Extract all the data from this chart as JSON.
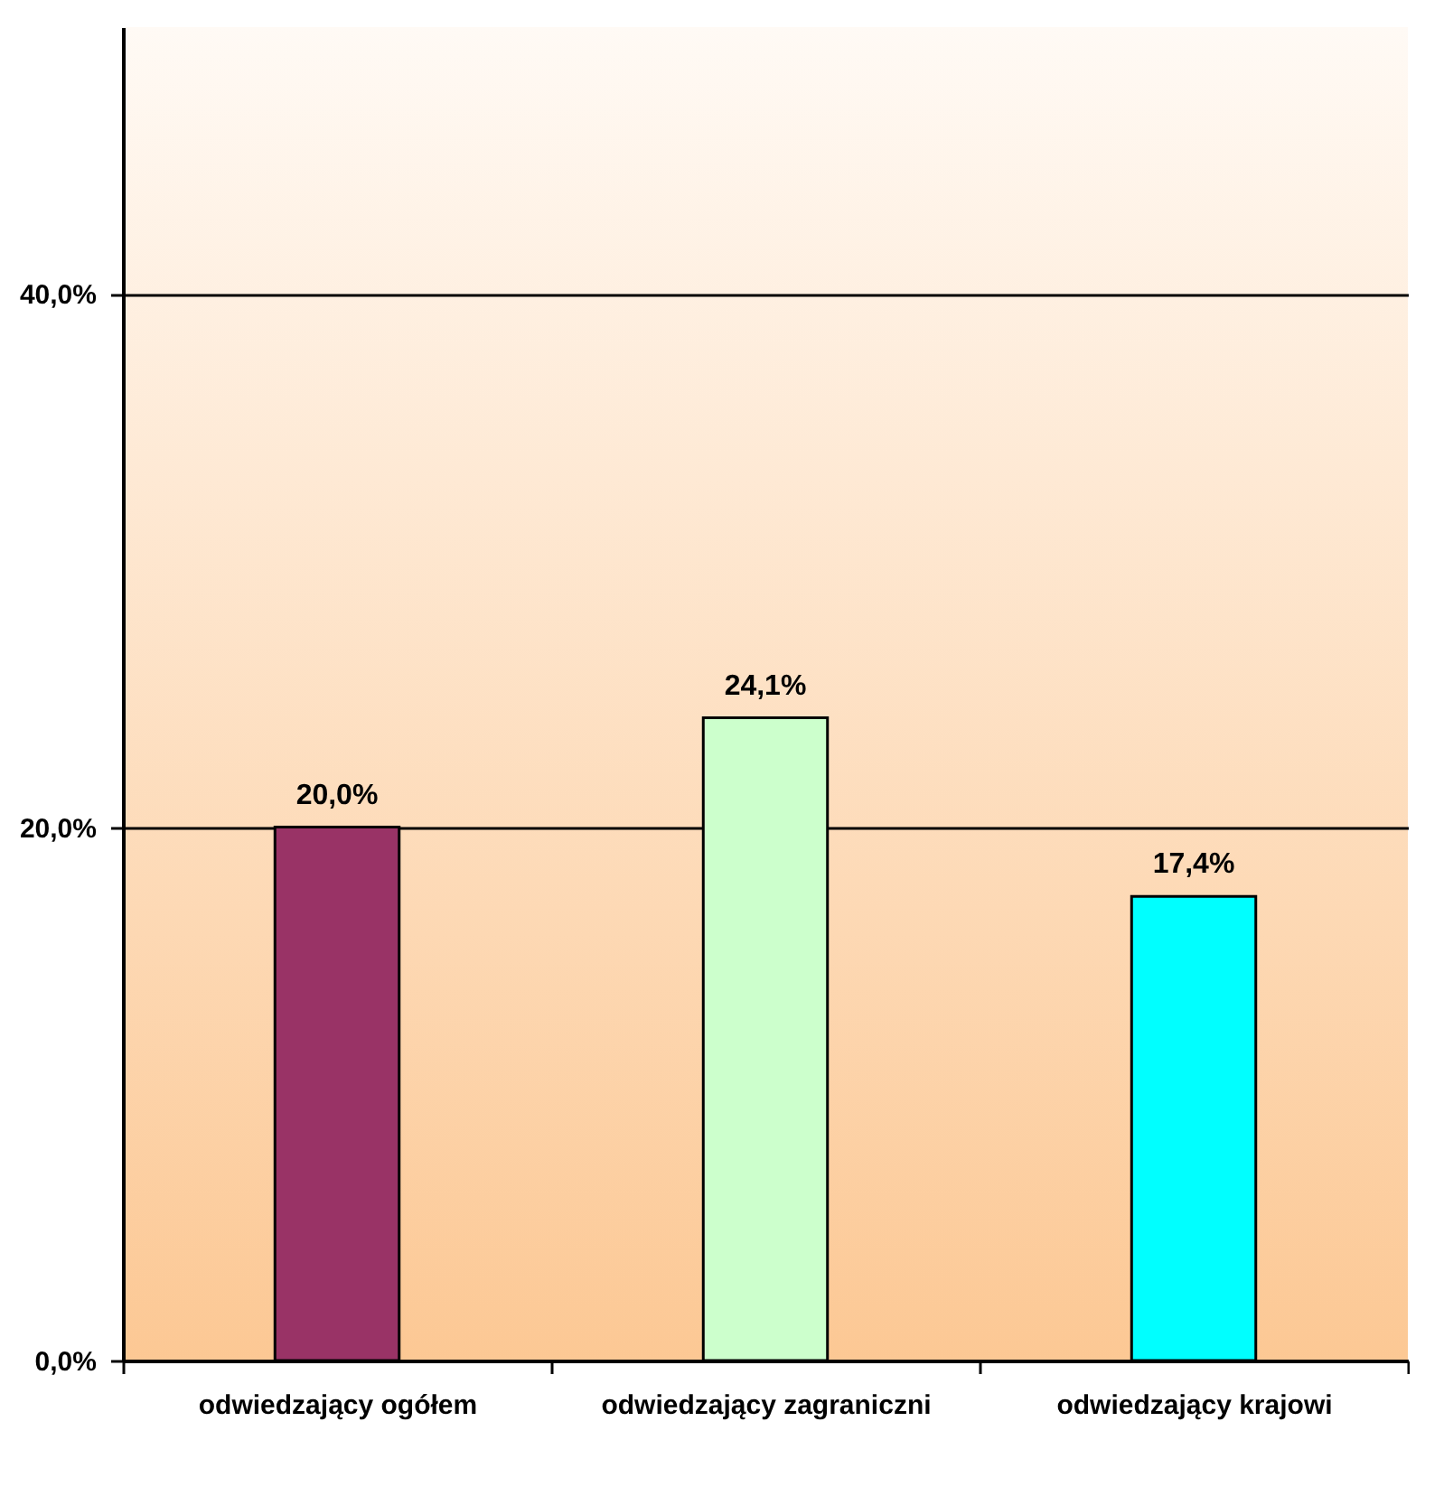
{
  "chart_data": {
    "type": "bar",
    "categories": [
      "odwiedzający ogółem",
      "odwiedzający zagraniczni",
      "odwiedzający krajowi"
    ],
    "values": [
      20.0,
      24.1,
      17.4
    ],
    "colors": [
      "#993366",
      "#ccffcc",
      "#00ffff"
    ],
    "value_labels": [
      "20,0%",
      "24,1%",
      "17,4%"
    ],
    "ylim": [
      0,
      50
    ],
    "yticks": [
      {
        "value": 0,
        "label": "0,0%"
      },
      {
        "value": 20,
        "label": "20,0%"
      },
      {
        "value": 40,
        "label": "40,0%"
      }
    ],
    "grid": "y"
  }
}
